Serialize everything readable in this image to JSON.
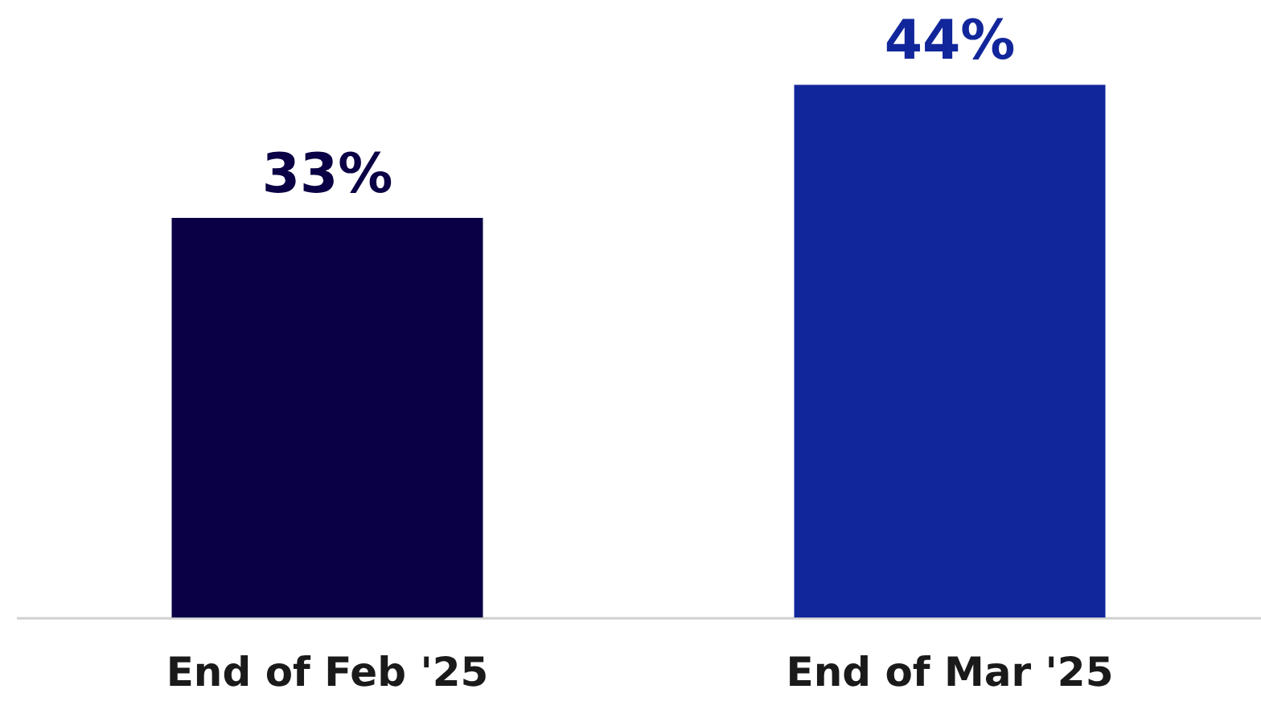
{
  "chart_data": {
    "type": "bar",
    "categories": [
      "End of Feb '25",
      "End of Mar '25"
    ],
    "values": [
      33,
      44
    ],
    "colors": [
      "#0a0045",
      "#12269b"
    ],
    "value_labels": [
      "33%",
      "44%"
    ],
    "ylim": [
      0,
      51
    ],
    "grid": false
  }
}
